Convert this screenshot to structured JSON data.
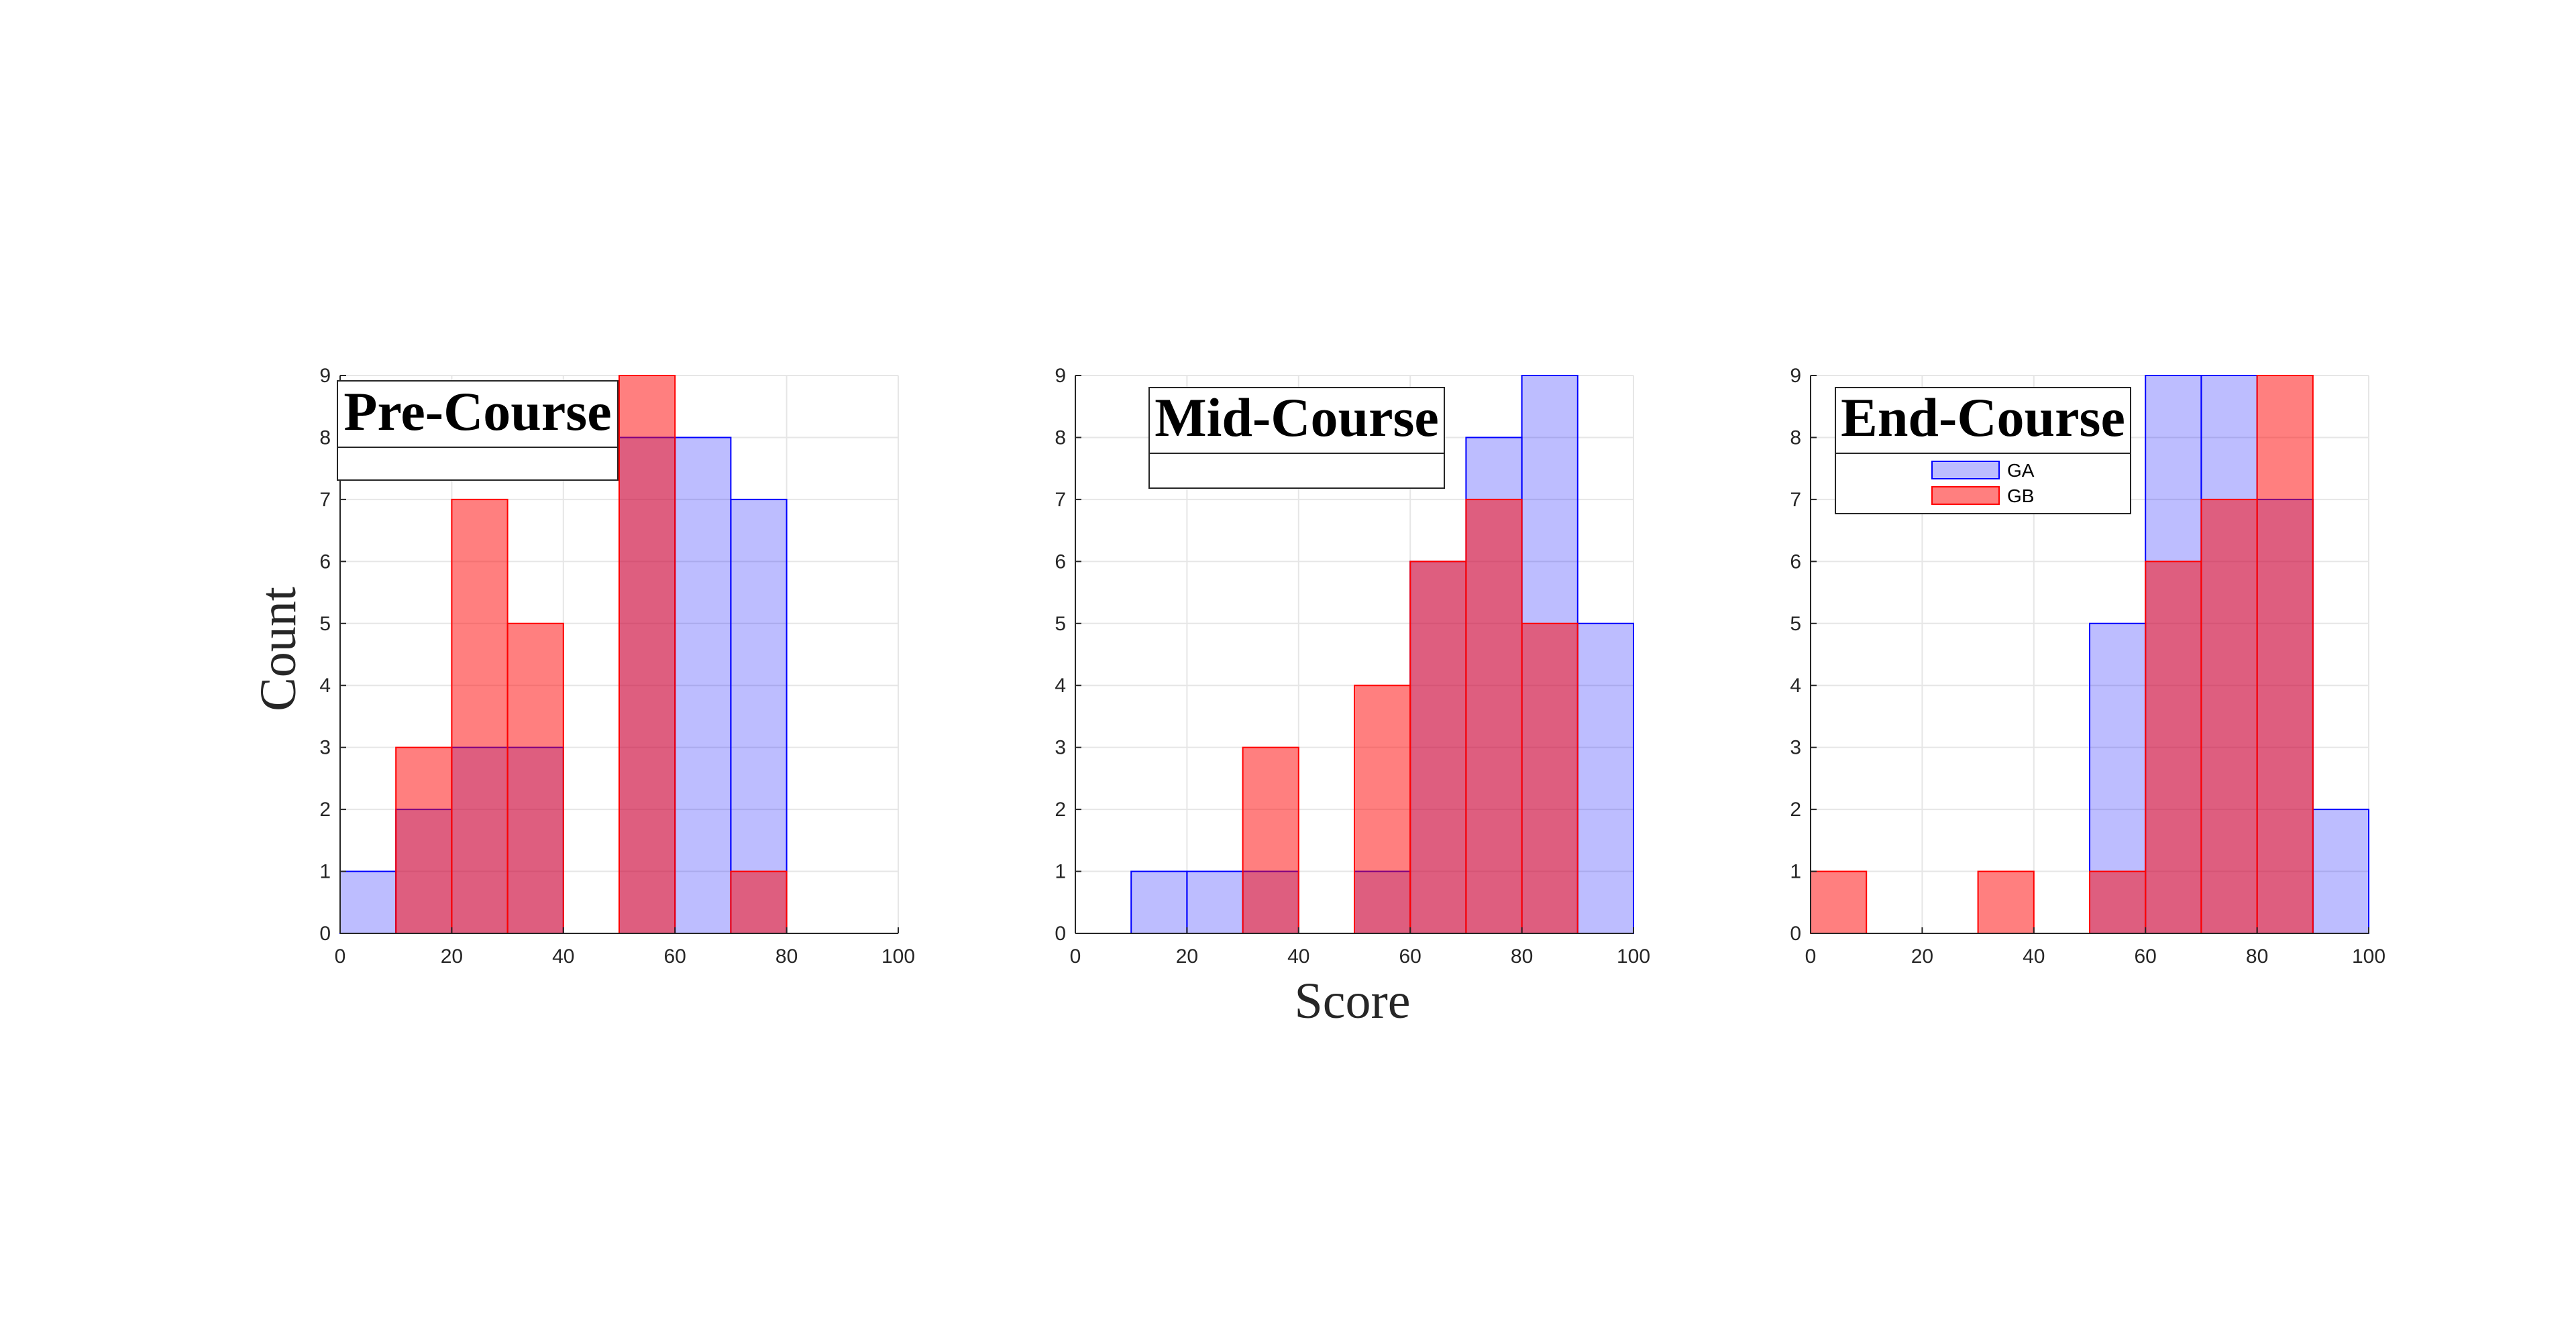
{
  "figure": {
    "ylabel": "Count",
    "xlabel": "Score"
  },
  "chart_data": [
    {
      "type": "histogram",
      "title": "Pre-Course",
      "xlim": [
        0,
        100
      ],
      "ylim": [
        0,
        9
      ],
      "xticks": [
        0,
        20,
        40,
        60,
        80,
        100
      ],
      "yticks": [
        0,
        1,
        2,
        3,
        4,
        5,
        6,
        7,
        8,
        9
      ],
      "grid": true,
      "bin_edges": [
        0,
        10,
        20,
        30,
        40,
        50,
        60,
        70,
        80,
        90,
        100
      ],
      "series": [
        {
          "name": "GA",
          "color": "#0000FF",
          "values": [
            1,
            2,
            3,
            3,
            0,
            8,
            8,
            7,
            0,
            0
          ]
        },
        {
          "name": "GB",
          "color": "#FF0000",
          "values": [
            0,
            3,
            7,
            5,
            0,
            9,
            0,
            1,
            0,
            0
          ]
        }
      ],
      "legend": {
        "shown": true,
        "entries": false,
        "location": "top-left"
      }
    },
    {
      "type": "histogram",
      "title": "Mid-Course",
      "xlim": [
        0,
        100
      ],
      "ylim": [
        0,
        9
      ],
      "xticks": [
        0,
        20,
        40,
        60,
        80,
        100
      ],
      "yticks": [
        0,
        1,
        2,
        3,
        4,
        5,
        6,
        7,
        8,
        9
      ],
      "grid": true,
      "bin_edges": [
        0,
        10,
        20,
        30,
        40,
        50,
        60,
        70,
        80,
        90,
        100
      ],
      "series": [
        {
          "name": "GA",
          "color": "#0000FF",
          "values": [
            0,
            1,
            1,
            1,
            0,
            1,
            6,
            8,
            9,
            5
          ]
        },
        {
          "name": "GB",
          "color": "#FF0000",
          "values": [
            0,
            0,
            0,
            3,
            0,
            4,
            6,
            7,
            5,
            0
          ]
        }
      ],
      "legend": {
        "shown": true,
        "entries": false,
        "location": "top-left"
      }
    },
    {
      "type": "histogram",
      "title": "End-Course",
      "xlim": [
        0,
        100
      ],
      "ylim": [
        0,
        9
      ],
      "xticks": [
        0,
        20,
        40,
        60,
        80,
        100
      ],
      "yticks": [
        0,
        1,
        2,
        3,
        4,
        5,
        6,
        7,
        8,
        9
      ],
      "grid": true,
      "bin_edges": [
        0,
        10,
        20,
        30,
        40,
        50,
        60,
        70,
        80,
        90,
        100
      ],
      "series": [
        {
          "name": "GA",
          "color": "#0000FF",
          "values": [
            0,
            0,
            0,
            0,
            0,
            5,
            9,
            9,
            7,
            2
          ]
        },
        {
          "name": "GB",
          "color": "#FF0000",
          "values": [
            1,
            0,
            0,
            1,
            0,
            1,
            6,
            7,
            9,
            0
          ]
        }
      ],
      "legend": {
        "shown": true,
        "entries": true,
        "location": "top-left"
      }
    }
  ]
}
